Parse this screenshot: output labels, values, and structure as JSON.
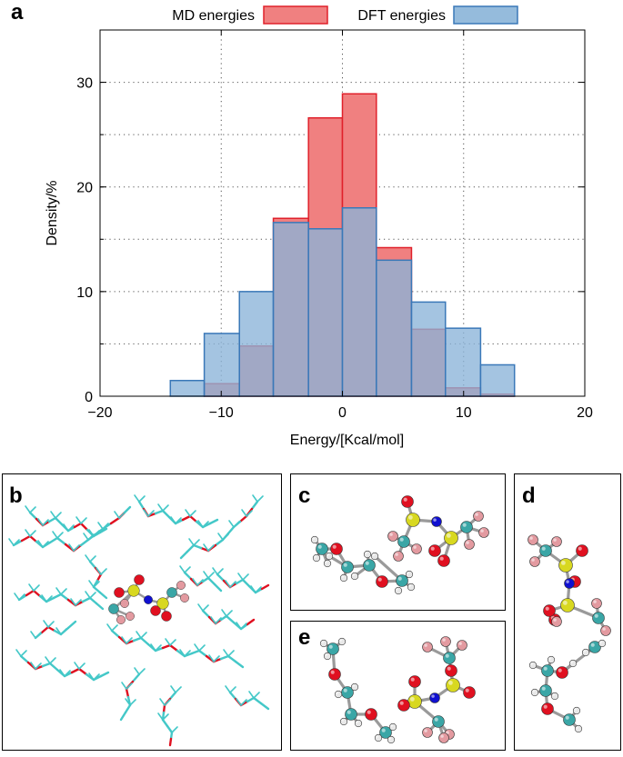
{
  "panels": {
    "a": "a",
    "b": "b",
    "c": "c",
    "d": "d",
    "e": "e"
  },
  "chart_data": {
    "type": "bar",
    "title": "",
    "xlabel": "Energy/[Kcal/mol]",
    "ylabel": "Density/%",
    "xlim": [
      -20,
      20
    ],
    "ylim": [
      0,
      35
    ],
    "xticks": [
      -20,
      -10,
      0,
      10,
      20
    ],
    "yticks": [
      0,
      10,
      20,
      30
    ],
    "xtick_labels": [
      "−20",
      "−10",
      "0",
      "10",
      "20"
    ],
    "ytick_labels": [
      "0",
      "10",
      "20",
      "30"
    ],
    "grid": true,
    "legend_position": "top",
    "bin_edges": [
      -14.2,
      -11.4,
      -8.5,
      -5.7,
      -2.8,
      0,
      2.8,
      5.7,
      8.5,
      11.4,
      14.2
    ],
    "series": [
      {
        "name": "MD energies",
        "fill": "#f08080",
        "stroke": "#e0202a",
        "values": [
          0,
          1.2,
          4.8,
          17.0,
          26.6,
          28.9,
          14.2,
          6.4,
          0.8,
          0.2
        ]
      },
      {
        "name": "DFT energies",
        "fill": "#8ab4d8",
        "stroke": "#3a78b8",
        "values": [
          1.5,
          6.0,
          10.0,
          16.6,
          16.0,
          18.0,
          13.0,
          9.0,
          6.5,
          3.0
        ]
      }
    ]
  },
  "colors": {
    "carbon": "#3aa6a6",
    "oxygen": "#e01020",
    "fluorine": "#e39aa0",
    "sulfur": "#d8d820",
    "nitrogen": "#1010d0",
    "hydrogen": "#e8e8e8",
    "stick": "#44c8c8"
  }
}
